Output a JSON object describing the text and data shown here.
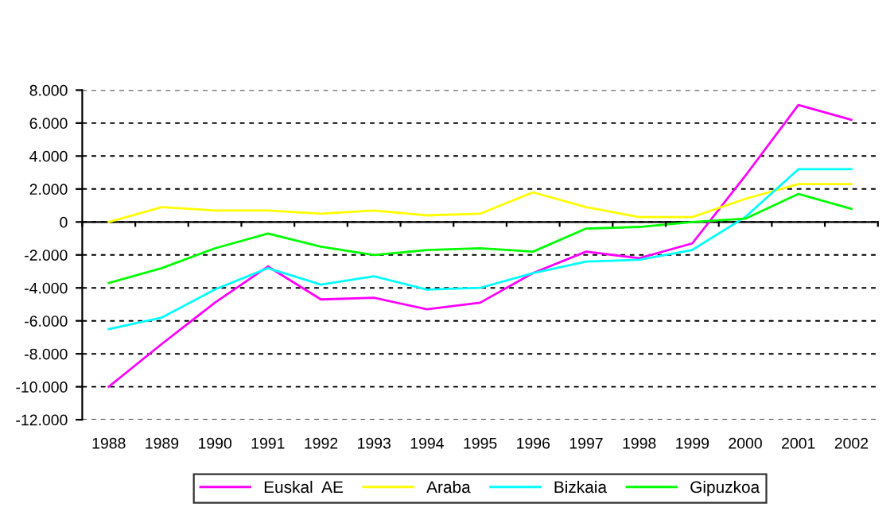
{
  "chart_data": {
    "type": "line",
    "categories": [
      "1988",
      "1989",
      "1990",
      "1991",
      "1992",
      "1993",
      "1994",
      "1995",
      "1996",
      "1997",
      "1998",
      "1999",
      "2000",
      "2001",
      "2002"
    ],
    "series": [
      {
        "name": "Euskal  AE",
        "color": "#ff00ff",
        "values": [
          -10000,
          -7400,
          -4900,
          -2700,
          -4700,
          -4600,
          -5300,
          -4900,
          -3100,
          -1800,
          -2200,
          -1300,
          2800,
          7100,
          6200
        ]
      },
      {
        "name": "Araba",
        "color": "#ffff00",
        "values": [
          0,
          900,
          700,
          700,
          500,
          700,
          400,
          500,
          1800,
          900,
          300,
          300,
          1400,
          2300,
          2300
        ]
      },
      {
        "name": "Bizkaia",
        "color": "#00ffff",
        "values": [
          -6500,
          -5800,
          -4100,
          -2800,
          -3800,
          -3300,
          -4100,
          -4000,
          -3100,
          -2400,
          -2300,
          -1700,
          300,
          3200,
          3200
        ]
      },
      {
        "name": "Gipuzkoa",
        "color": "#00ff00",
        "values": [
          -3700,
          -2800,
          -1600,
          -700,
          -1500,
          -2000,
          -1700,
          -1600,
          -1800,
          -400,
          -300,
          0,
          200,
          1700,
          800
        ]
      }
    ],
    "ylim": [
      -12000,
      8000
    ],
    "yticks": [
      {
        "value": -12000,
        "label": "-12.000"
      },
      {
        "value": -10000,
        "label": "-10.000"
      },
      {
        "value": -8000,
        "label": "-8.000"
      },
      {
        "value": -6000,
        "label": "-6.000"
      },
      {
        "value": -4000,
        "label": "-4.000"
      },
      {
        "value": -2000,
        "label": "-2.000"
      },
      0,
      {
        "value": 2000,
        "label": "2.000"
      },
      {
        "value": 4000,
        "label": "4.000"
      },
      {
        "value": 6000,
        "label": "6.000"
      },
      {
        "value": 8000,
        "label": "8.000"
      }
    ],
    "grid": "y",
    "legend": "bottom",
    "marker": "none",
    "line_style": "solid"
  }
}
